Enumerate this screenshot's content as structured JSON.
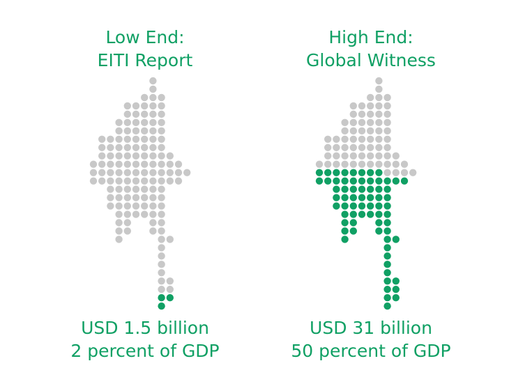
{
  "panels": [
    {
      "title": [
        "Low End:",
        "EITI Report"
      ],
      "amount": "USD 1.5 billion",
      "share": {
        "value": 2,
        "label": "2 percent of GDP"
      }
    },
    {
      "title": [
        "High End:",
        "Global Witness"
      ],
      "amount": "USD 31 billion",
      "share": {
        "value": 50,
        "label": "50 percent of GDP"
      }
    }
  ],
  "colors": {
    "filled": "#10a064",
    "empty": "#c8c8c8"
  }
}
